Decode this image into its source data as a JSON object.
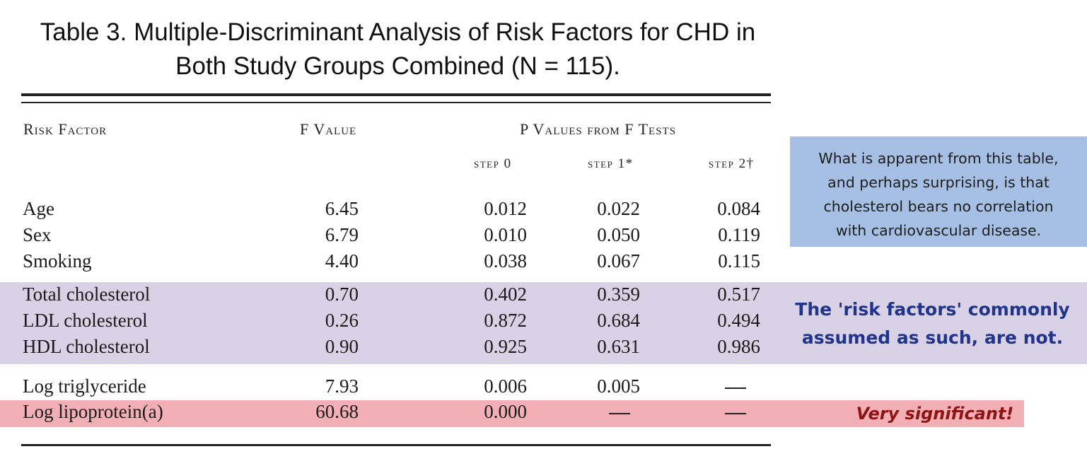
{
  "title": {
    "line1": "Table 3. Multiple-Discriminant Analysis of Risk Factors for CHD in",
    "line2": "Both Study Groups Combined (N = 115)."
  },
  "headers": {
    "risk_factor": "Risk Factor",
    "f_value": "F Value",
    "p_values": "P Values from F Tests",
    "step0": "step 0",
    "step1": "step 1*",
    "step2": "step 2†"
  },
  "rows": [
    {
      "name": "Age",
      "f": "6.45",
      "s0": "0.012",
      "s1": "0.022",
      "s2": "0.084"
    },
    {
      "name": "Sex",
      "f": "6.79",
      "s0": "0.010",
      "s1": "0.050",
      "s2": "0.119"
    },
    {
      "name": "Smoking",
      "f": "4.40",
      "s0": "0.038",
      "s1": "0.067",
      "s2": "0.115"
    },
    {
      "name": "Total cholesterol",
      "f": "0.70",
      "s0": "0.402",
      "s1": "0.359",
      "s2": "0.517"
    },
    {
      "name": "LDL cholesterol",
      "f": "0.26",
      "s0": "0.872",
      "s1": "0.684",
      "s2": "0.494"
    },
    {
      "name": "HDL cholesterol",
      "f": "0.90",
      "s0": "0.925",
      "s1": "0.631",
      "s2": "0.986"
    },
    {
      "name": "Log triglyceride",
      "f": "7.93",
      "s0": "0.006",
      "s1": "0.005",
      "s2": "—"
    },
    {
      "name": "Log lipoprotein(a)",
      "f": "60.68",
      "s0": "0.000",
      "s1": "—",
      "s2": "—"
    }
  ],
  "note": {
    "line1": "What is apparent from this table,",
    "line2": "and perhaps surprising, is that",
    "line3": "cholesterol bears no correlation",
    "line4": "with cardiovascular disease."
  },
  "callout": {
    "line1": "The 'risk factors' commonly",
    "line2": "assumed as such, are not."
  },
  "significance": "Very significant!",
  "colors": {
    "cholesterol_band": "#d9d2e6",
    "lipoprotein_band": "#f2b0b6",
    "note_box": "#a6bfe4",
    "callout_text": "#21348c",
    "significance_text": "#8e1313"
  }
}
